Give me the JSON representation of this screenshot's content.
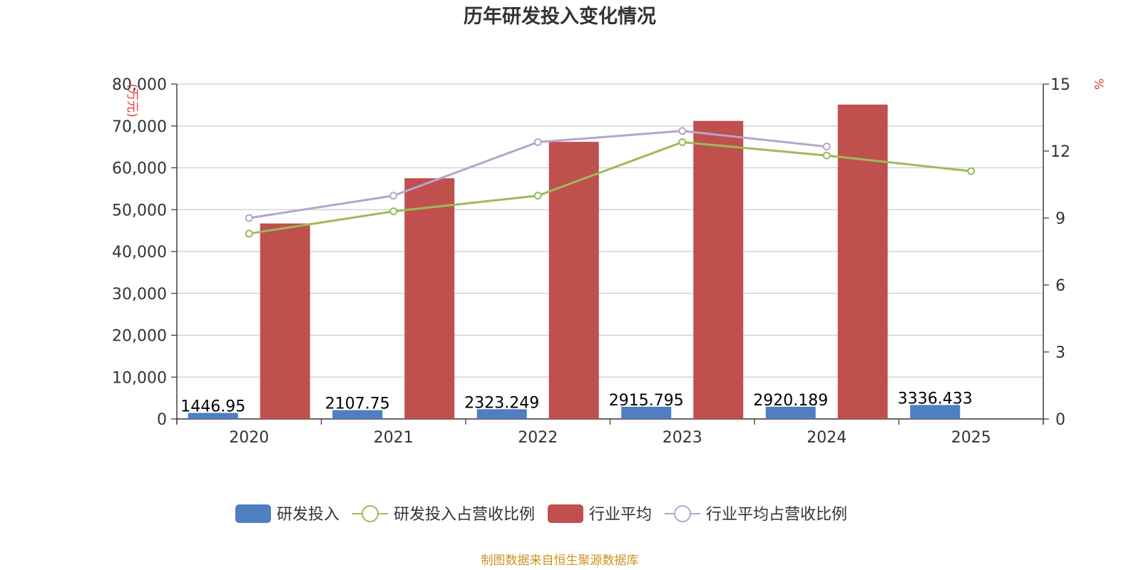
{
  "chart_data": {
    "type": "bar",
    "title": "历年研发投入变化情况",
    "categories": [
      "2020",
      "2021",
      "2022",
      "2023",
      "2024",
      "2025"
    ],
    "y_left": {
      "unit": "(万元)",
      "min": 0,
      "max": 80000,
      "step": 10000,
      "tick_labels": [
        "0",
        "10,000",
        "20,000",
        "30,000",
        "40,000",
        "50,000",
        "60,000",
        "70,000",
        "80,000"
      ]
    },
    "y_right": {
      "unit": "%",
      "min": 0,
      "max": 15,
      "step": 3,
      "tick_labels": [
        "0",
        "3",
        "6",
        "9",
        "12",
        "15"
      ]
    },
    "series": [
      {
        "name": "研发投入",
        "kind": "bar",
        "axis": "left",
        "color": "#4f7ec1",
        "values": [
          1446.95,
          2107.75,
          2323.249,
          2915.795,
          2920.189,
          3336.433
        ],
        "labels": [
          "1446.95",
          "2107.75",
          "2323.249",
          "2915.795",
          "2920.189",
          "3336.433"
        ]
      },
      {
        "name": "研发投入占营收比例",
        "kind": "line",
        "axis": "right",
        "color": "#9bbb59",
        "values": [
          8.3,
          9.3,
          10.0,
          12.4,
          11.8,
          11.1
        ]
      },
      {
        "name": "行业平均",
        "kind": "bar",
        "axis": "left",
        "color": "#c0504d",
        "values": [
          46700,
          57500,
          66200,
          71200,
          75100,
          null
        ]
      },
      {
        "name": "行业平均占营收比例",
        "kind": "line",
        "axis": "right",
        "color": "#b3a5cf",
        "values": [
          9.0,
          10.0,
          12.4,
          12.9,
          12.2,
          null
        ]
      }
    ],
    "legend_position": "bottom",
    "grid": true
  },
  "footer": {
    "source": "制图数据来自恒生聚源数据库"
  }
}
